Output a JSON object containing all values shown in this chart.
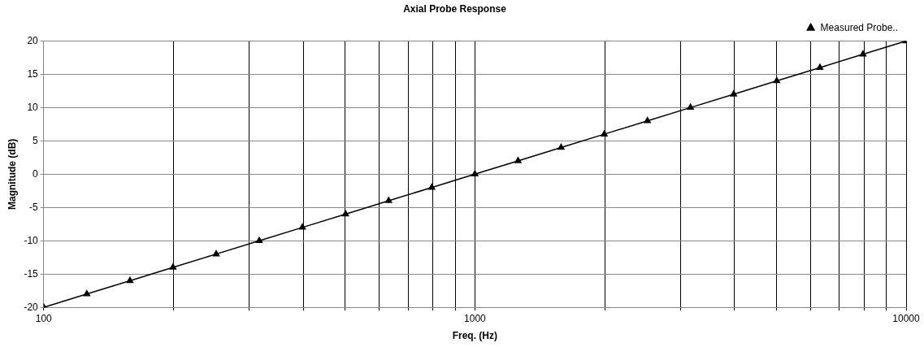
{
  "chart_data": {
    "type": "line",
    "title": "Axial Probe Response",
    "xlabel": "Freq. (Hz)",
    "ylabel": "Magnitude (dB)",
    "x": [
      100,
      125.9,
      158.5,
      199.5,
      251.2,
      316.2,
      398.1,
      501.2,
      631,
      794.3,
      1000,
      1259,
      1585,
      1995,
      2512,
      3162,
      3981,
      5012,
      6310,
      7943,
      10000
    ],
    "series": [
      {
        "name": "Measured Probe..",
        "color": "#000000",
        "values": [
          -20,
          -18,
          -16,
          -14,
          -12,
          -10,
          -8,
          -6,
          -4,
          -2,
          0,
          2,
          4,
          6,
          8,
          10,
          12,
          14,
          16,
          18,
          20
        ]
      }
    ],
    "log": "x",
    "xlim": [
      100,
      10000
    ],
    "xticks": [
      100,
      {
        "value": 200,
        "label": null
      },
      {
        "value": 300,
        "label": null
      },
      {
        "value": 400,
        "label": null
      },
      {
        "value": 500,
        "label": null
      },
      {
        "value": 600,
        "label": null
      },
      {
        "value": 700,
        "label": null
      },
      {
        "value": 800,
        "label": null
      },
      {
        "value": 900,
        "label": null
      },
      1000,
      {
        "value": 2000,
        "label": null
      },
      {
        "value": 3000,
        "label": null
      },
      {
        "value": 4000,
        "label": null
      },
      {
        "value": 5000,
        "label": null
      },
      {
        "value": 6000,
        "label": null
      },
      {
        "value": 7000,
        "label": null
      },
      {
        "value": 8000,
        "label": null
      },
      {
        "value": 9000,
        "label": null
      },
      10000
    ],
    "ylim": [
      -20,
      20
    ],
    "yticks": [
      -20,
      -15,
      -10,
      -5,
      0,
      5,
      10,
      15,
      20
    ],
    "grid": true,
    "legend": "top right",
    "marker": "triangle",
    "line_style": "solid"
  }
}
